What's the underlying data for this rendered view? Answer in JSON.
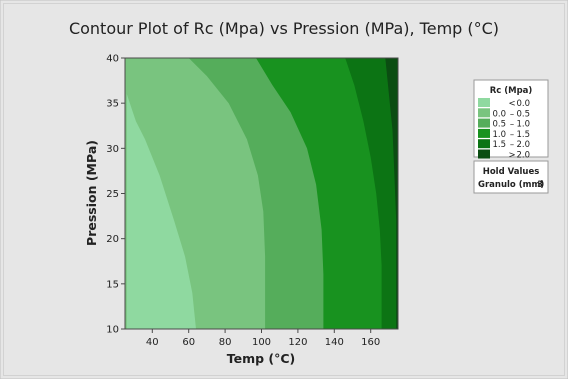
{
  "chart_data": {
    "type": "contour",
    "title": "Contour Plot of Rc (Mpa) vs Pression (MPa), Temp (°C)",
    "xlabel": "Temp (°C)",
    "ylabel": "Pression (MPa)",
    "xlim": [
      25,
      175
    ],
    "ylim": [
      10,
      40
    ],
    "xticks": [
      40,
      60,
      80,
      100,
      120,
      140,
      160
    ],
    "yticks": [
      10,
      15,
      20,
      25,
      30,
      35,
      40
    ],
    "grid": false,
    "legend": {
      "title": "Rc (Mpa)",
      "placement": "top-right",
      "entries": [
        {
          "label": "< 0.0",
          "color": "#8fd9a0"
        },
        {
          "label": "0.0 – 0.5",
          "color": "#79c47f"
        },
        {
          "label": "0.5 – 1.0",
          "color": "#55ad5b"
        },
        {
          "label": "1.0 – 1.5",
          "color": "#18921f"
        },
        {
          "label": "1.5 – 2.0",
          "color": "#0c7414"
        },
        {
          "label": "> 2.0",
          "color": "#0b4d12"
        }
      ]
    },
    "contour_boundaries": [
      {
        "level": 0.0,
        "points": [
          [
            26,
            10
          ],
          [
            26,
            36
          ],
          [
            31,
            33
          ],
          [
            36,
            31
          ],
          [
            44,
            27
          ],
          [
            52,
            22
          ],
          [
            58,
            18
          ],
          [
            62,
            14
          ],
          [
            64,
            10
          ]
        ]
      },
      {
        "level": 0.5,
        "points": [
          [
            60,
            40
          ],
          [
            70,
            38
          ],
          [
            82,
            35
          ],
          [
            92,
            31
          ],
          [
            98,
            27
          ],
          [
            101,
            23
          ],
          [
            102,
            18
          ],
          [
            102,
            14
          ],
          [
            102,
            10
          ]
        ]
      },
      {
        "level": 1.0,
        "points": [
          [
            97,
            40
          ],
          [
            106,
            37
          ],
          [
            116,
            34
          ],
          [
            125,
            30
          ],
          [
            130,
            26
          ],
          [
            133,
            21
          ],
          [
            134,
            16
          ],
          [
            134,
            12
          ],
          [
            134,
            10
          ]
        ]
      },
      {
        "level": 1.5,
        "points": [
          [
            146,
            40
          ],
          [
            151,
            37
          ],
          [
            156,
            33
          ],
          [
            160,
            29
          ],
          [
            163,
            25
          ],
          [
            165,
            21
          ],
          [
            166,
            17
          ],
          [
            166,
            13
          ],
          [
            166,
            10
          ]
        ]
      },
      {
        "level": 2.0,
        "points": [
          [
            168,
            40
          ],
          [
            170,
            36
          ],
          [
            172,
            32
          ],
          [
            173,
            27
          ],
          [
            174,
            22
          ],
          [
            174,
            17
          ],
          [
            174,
            10
          ]
        ]
      }
    ],
    "hold_values": {
      "title": "Hold Values",
      "label": "Granulo (mm)",
      "value": "3"
    }
  }
}
